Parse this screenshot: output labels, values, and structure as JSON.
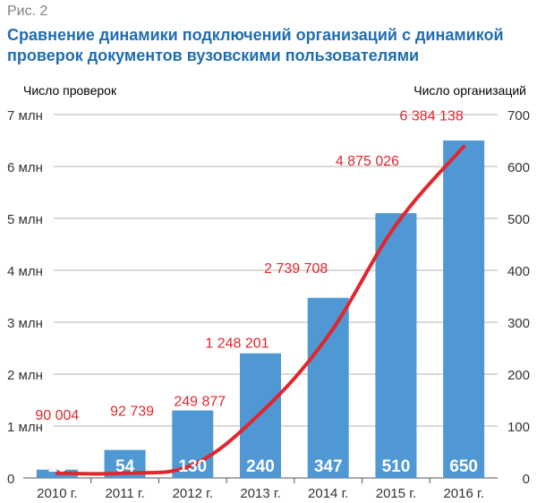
{
  "figure": {
    "label": "Рис. 2",
    "title": "Сравнение динамики подключений организаций с динамикой проверок документов вузовскими пользователями"
  },
  "colors": {
    "bar": "#4f98d4",
    "line": "#e1262c",
    "grid": "#9a9a9a",
    "text": "#333333",
    "bar_label": "#ffffff",
    "line_label": "#e1262c"
  },
  "chart_data": {
    "type": "bar",
    "categories": [
      "2010 г.",
      "2011 г.",
      "2012 г.",
      "2013 г.",
      "2014 г.",
      "2015 г.",
      "2016 г."
    ],
    "y_left_label": "Число проверок",
    "y_right_label": "Число организаций",
    "y_left_ticks": [
      "0",
      "1 млн",
      "2 млн",
      "3 млн",
      "4 млн",
      "5 млн",
      "6 млн",
      "7 млн"
    ],
    "y_right_ticks": [
      "0",
      "100",
      "200",
      "300",
      "400",
      "500",
      "600",
      "700"
    ],
    "y_left_range": [
      0,
      7000000
    ],
    "y_right_range": [
      0,
      700
    ],
    "grid": true,
    "series": [
      {
        "name": "",
        "type": "bar",
        "axis": "right",
        "values": [
          16,
          54,
          130,
          240,
          347,
          510,
          650
        ],
        "labels": [
          "16",
          "54",
          "130",
          "240",
          "347",
          "510",
          "650"
        ]
      },
      {
        "name": "",
        "type": "line",
        "axis": "left",
        "values": [
          90004,
          92739,
          249877,
          1248201,
          2739708,
          4875026,
          6384138
        ],
        "labels": [
          "90 004",
          "92 739",
          "249 877",
          "1 248 201",
          "2 739 708",
          "4 875 026",
          "6 384 138"
        ]
      }
    ]
  }
}
